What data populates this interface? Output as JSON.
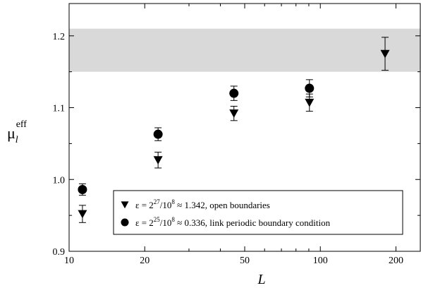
{
  "chart_data": {
    "type": "scatter",
    "xscale": "log",
    "xlim": [
      10,
      250
    ],
    "ylim": [
      0.9,
      1.245
    ],
    "xticks": [
      10,
      20,
      50,
      100,
      200
    ],
    "xtick_labels": [
      "10",
      "20",
      "50",
      "100",
      "200"
    ],
    "yticks": [
      0.9,
      1.0,
      1.1,
      1.2
    ],
    "ytick_labels": [
      "0.9",
      "1.0",
      "1.1",
      "1.2"
    ],
    "xlabel": "L",
    "ylabel": {
      "base": "μ",
      "sub": "l",
      "sup": "eff"
    },
    "grid": false,
    "band": {
      "ymin": 1.15,
      "ymax": 1.21,
      "color": "#d9d9d9"
    },
    "series": [
      {
        "name": "ε = 2^27/10^8 ≈ 1.342, open boundaries",
        "marker": "triangle-down",
        "x": [
          11.3,
          22.6,
          45.3,
          90.5,
          181
        ],
        "y": [
          0.952,
          1.027,
          1.092,
          1.107,
          1.175
        ],
        "yerr": [
          0.012,
          0.011,
          0.01,
          0.012,
          0.023
        ]
      },
      {
        "name": "ε = 2^25/10^8 ≈ 0.336, link periodic boundary condition",
        "marker": "circle",
        "x": [
          11.3,
          22.6,
          45.3,
          90.5
        ],
        "y": [
          0.986,
          1.063,
          1.12,
          1.127
        ],
        "yerr": [
          0.008,
          0.009,
          0.01,
          0.012
        ]
      }
    ],
    "legend": {
      "placement": "bottom-right",
      "entries": [
        {
          "pre": "ε = 2",
          "sup1": "27",
          "mid": "/10",
          "sup2": "8",
          "post": " ≈ 1.342, open boundaries"
        },
        {
          "pre": "ε = 2",
          "sup1": "25",
          "mid": "/10",
          "sup2": "8",
          "post": " ≈ 0.336, link periodic boundary condition"
        }
      ]
    },
    "colors": {
      "marker": "#000000",
      "axis": "#000000"
    }
  }
}
